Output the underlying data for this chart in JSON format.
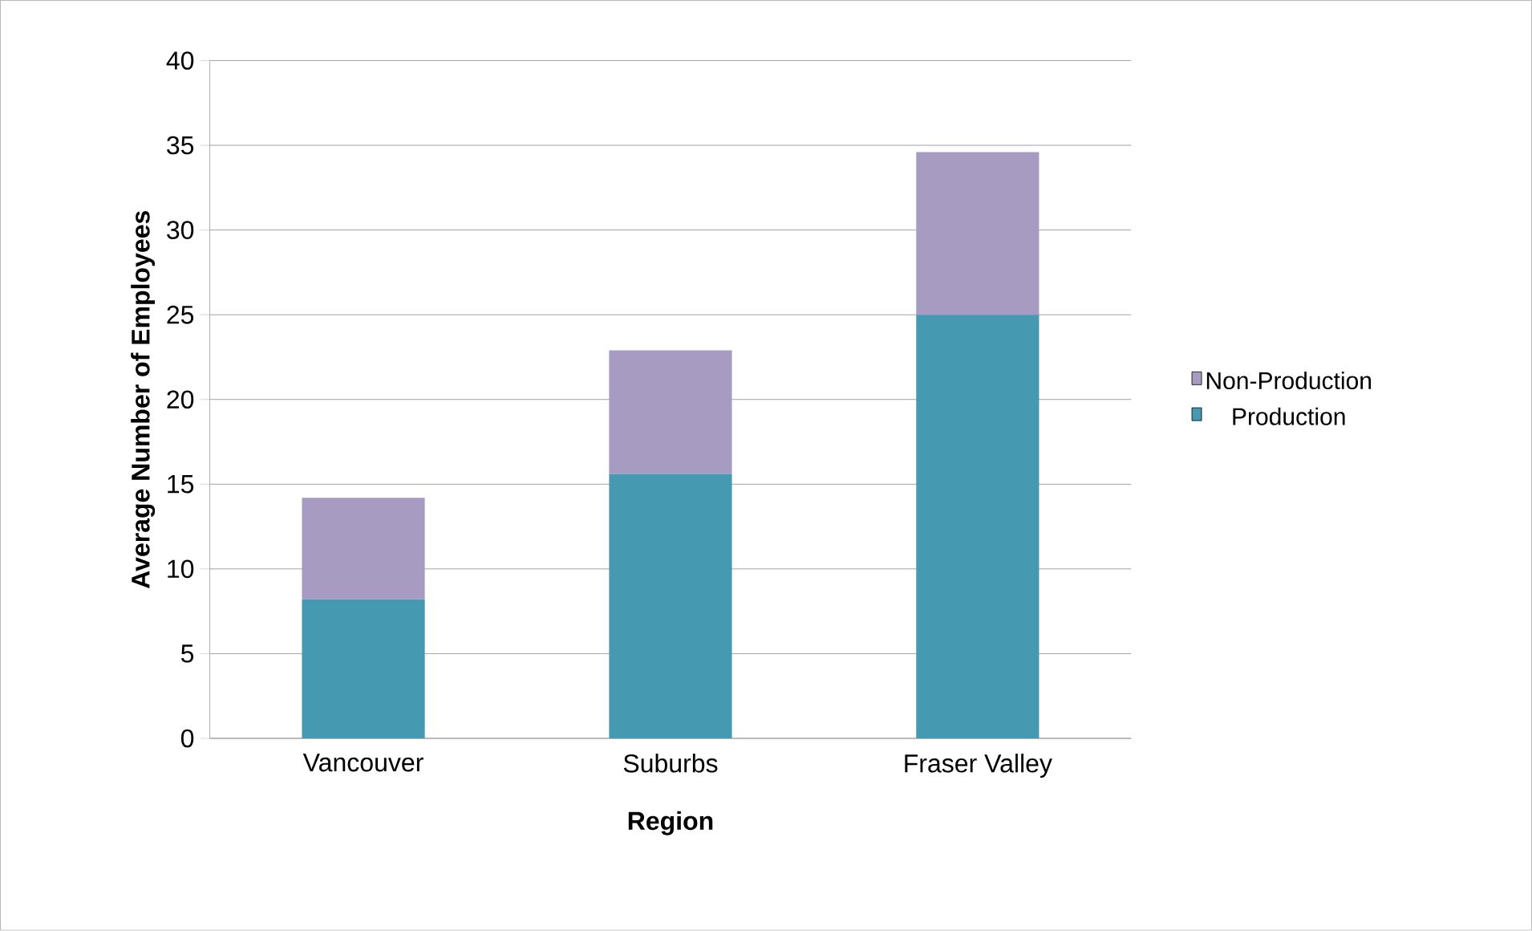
{
  "chart_data": {
    "type": "bar",
    "stacked": true,
    "xlabel": "Region",
    "ylabel": "Average Number of Employees",
    "categories": [
      "Vancouver",
      "Suburbs",
      "Fraser Valley"
    ],
    "series": [
      {
        "name": "Production",
        "color": "#4599b1",
        "values": [
          8.2,
          15.6,
          25.0
        ]
      },
      {
        "name": "Non-Production",
        "color": "#a89bc2",
        "values": [
          6.0,
          7.3,
          9.6
        ]
      }
    ],
    "ylim": [
      0,
      40
    ],
    "yticks": [
      0,
      5,
      10,
      15,
      20,
      25,
      30,
      35,
      40
    ],
    "grid": "y",
    "legend": "right"
  }
}
